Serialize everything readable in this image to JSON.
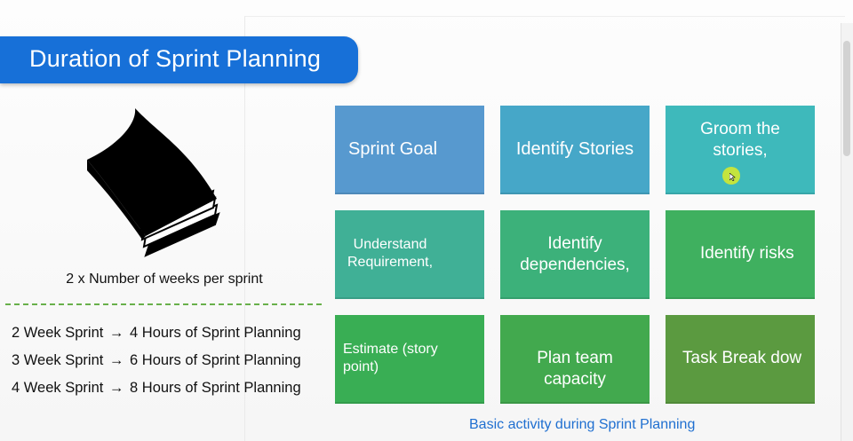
{
  "title": "Duration of Sprint Planning",
  "formula": "2 x Number of weeks per sprint",
  "rules": [
    {
      "sprint": "2 Week Sprint",
      "arrow": "→",
      "hours": "4 Hours of Sprint Planning"
    },
    {
      "sprint": "3 Week Sprint",
      "arrow": "→",
      "hours": "6 Hours of Sprint Planning"
    },
    {
      "sprint": "4 Week Sprint",
      "arrow": "→",
      "hours": "8 Hours of Sprint Planning"
    }
  ],
  "tiles": [
    {
      "lines": [
        "Sprint Goal"
      ]
    },
    {
      "lines": [
        "Identify Stories"
      ]
    },
    {
      "lines": [
        "Groom the",
        "stories,"
      ]
    },
    {
      "lines": [
        "Understand",
        "Requirement,"
      ]
    },
    {
      "lines": [
        "Identify",
        "dependencies,"
      ]
    },
    {
      "lines": [
        "Identify risks"
      ]
    },
    {
      "lines": [
        "Estimate (story",
        "point)"
      ]
    },
    {
      "lines": [
        "Plan team",
        "capacity"
      ]
    },
    {
      "lines": [
        "Task Break dow"
      ]
    }
  ],
  "caption": "Basic activity during Sprint Planning",
  "icons": {
    "book": "book-icon",
    "cursor": "mouse-cursor-icon"
  },
  "colors": {
    "title_banner": "#1770d8",
    "caption": "#1f6fd0",
    "divider": "#68b04a",
    "tiles": [
      "#5799cf",
      "#46a7c8",
      "#3eb9bb",
      "#40b096",
      "#3cb17a",
      "#3fb05f",
      "#39ae54",
      "#42a94e",
      "#5b9a40"
    ]
  }
}
